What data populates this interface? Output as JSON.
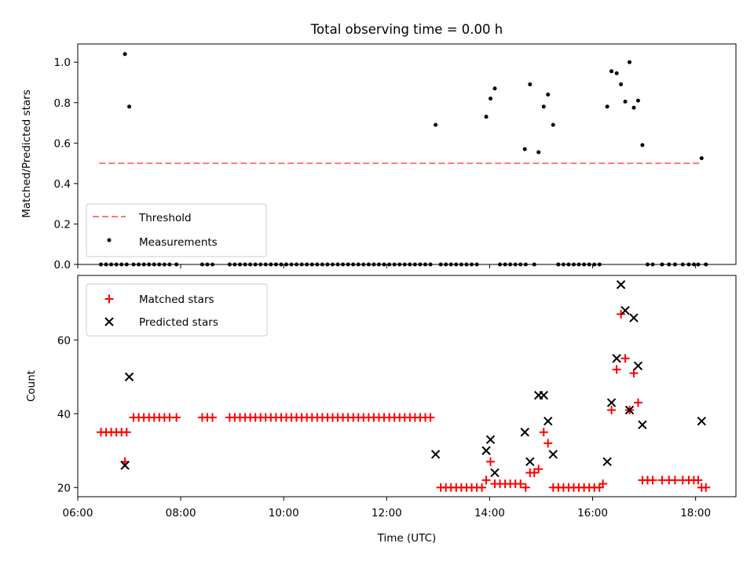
{
  "chart_data": [
    {
      "type": "scatter",
      "title": "Total observing time = 0.00 h",
      "xlabel": "",
      "ylabel": "Matched/Predicted stars",
      "xlim": [
        "06:00",
        "18:47"
      ],
      "ylim": [
        0,
        1.09
      ],
      "yticks": [
        "0.0",
        "0.2",
        "0.4",
        "0.6",
        "0.8",
        "1.0"
      ],
      "legend_position": "lower-left",
      "threshold": {
        "name": "Threshold",
        "value": 0.5,
        "x_start": "06:25",
        "x_end": "18:05",
        "color": "#ff7777"
      },
      "series": [
        {
          "name": "Measurements",
          "color": "#000000",
          "points": [
            [
              "06:27",
              0
            ],
            [
              "06:33",
              0
            ],
            [
              "06:39",
              0
            ],
            [
              "06:45",
              0
            ],
            [
              "06:51",
              0
            ],
            [
              "06:57",
              0
            ],
            [
              "06:55",
              1.04
            ],
            [
              "07:00",
              0.78
            ],
            [
              "07:05",
              0
            ],
            [
              "07:11",
              0
            ],
            [
              "07:17",
              0
            ],
            [
              "07:23",
              0
            ],
            [
              "07:29",
              0
            ],
            [
              "07:35",
              0
            ],
            [
              "07:41",
              0
            ],
            [
              "07:47",
              0
            ],
            [
              "07:55",
              0
            ],
            [
              "08:25",
              0
            ],
            [
              "08:31",
              0
            ],
            [
              "08:37",
              0
            ],
            [
              "08:57",
              0
            ],
            [
              "09:03",
              0
            ],
            [
              "09:09",
              0
            ],
            [
              "09:15",
              0
            ],
            [
              "09:21",
              0
            ],
            [
              "09:27",
              0
            ],
            [
              "09:33",
              0
            ],
            [
              "09:39",
              0
            ],
            [
              "09:45",
              0
            ],
            [
              "09:51",
              0
            ],
            [
              "09:57",
              0
            ],
            [
              "10:03",
              0
            ],
            [
              "10:09",
              0
            ],
            [
              "10:15",
              0
            ],
            [
              "10:21",
              0
            ],
            [
              "10:27",
              0
            ],
            [
              "10:33",
              0
            ],
            [
              "10:39",
              0
            ],
            [
              "10:45",
              0
            ],
            [
              "10:51",
              0
            ],
            [
              "10:57",
              0
            ],
            [
              "11:03",
              0
            ],
            [
              "11:09",
              0
            ],
            [
              "11:15",
              0
            ],
            [
              "11:21",
              0
            ],
            [
              "11:27",
              0
            ],
            [
              "11:33",
              0
            ],
            [
              "11:39",
              0
            ],
            [
              "11:45",
              0
            ],
            [
              "11:51",
              0
            ],
            [
              "11:57",
              0
            ],
            [
              "12:03",
              0
            ],
            [
              "12:09",
              0
            ],
            [
              "12:15",
              0
            ],
            [
              "12:21",
              0
            ],
            [
              "12:27",
              0
            ],
            [
              "12:33",
              0
            ],
            [
              "12:39",
              0
            ],
            [
              "12:45",
              0
            ],
            [
              "12:51",
              0
            ],
            [
              "12:57",
              0.69
            ],
            [
              "13:03",
              0
            ],
            [
              "13:09",
              0
            ],
            [
              "13:15",
              0
            ],
            [
              "13:21",
              0
            ],
            [
              "13:27",
              0
            ],
            [
              "13:33",
              0
            ],
            [
              "13:39",
              0
            ],
            [
              "13:45",
              0
            ],
            [
              "13:56",
              0.73
            ],
            [
              "14:01",
              0.82
            ],
            [
              "14:06",
              0.87
            ],
            [
              "14:12",
              0
            ],
            [
              "14:18",
              0
            ],
            [
              "14:24",
              0
            ],
            [
              "14:30",
              0
            ],
            [
              "14:36",
              0
            ],
            [
              "14:42",
              0
            ],
            [
              "14:41",
              0.57
            ],
            [
              "14:47",
              0.89
            ],
            [
              "14:52",
              0
            ],
            [
              "14:57",
              0.555
            ],
            [
              "15:03",
              0.78
            ],
            [
              "15:08",
              0.84
            ],
            [
              "15:14",
              0.69
            ],
            [
              "15:20",
              0
            ],
            [
              "15:26",
              0
            ],
            [
              "15:32",
              0
            ],
            [
              "15:38",
              0
            ],
            [
              "15:44",
              0
            ],
            [
              "15:50",
              0
            ],
            [
              "15:56",
              0
            ],
            [
              "16:02",
              0
            ],
            [
              "16:08",
              0
            ],
            [
              "16:17",
              0.78
            ],
            [
              "16:22",
              0.955
            ],
            [
              "16:28",
              0.945
            ],
            [
              "16:33",
              0.89
            ],
            [
              "16:38",
              0.805
            ],
            [
              "16:43",
              1.0
            ],
            [
              "16:48",
              0.775
            ],
            [
              "16:53",
              0.81
            ],
            [
              "16:58",
              0.59
            ],
            [
              "17:04",
              0
            ],
            [
              "17:10",
              0
            ],
            [
              "17:21",
              0
            ],
            [
              "17:29",
              0
            ],
            [
              "17:36",
              0
            ],
            [
              "17:45",
              0
            ],
            [
              "17:52",
              0
            ],
            [
              "17:58",
              0
            ],
            [
              "18:03",
              0
            ],
            [
              "18:07",
              0.525
            ],
            [
              "18:12",
              0
            ]
          ]
        }
      ]
    },
    {
      "type": "scatter",
      "title": "",
      "xlabel": "Time (UTC)",
      "ylabel": "Count",
      "xlim": [
        "06:00",
        "18:47"
      ],
      "ylim": [
        17.5,
        77.5
      ],
      "yticks": [
        "20",
        "40",
        "60"
      ],
      "xticks": [
        "06:00",
        "08:00",
        "10:00",
        "12:00",
        "14:00",
        "16:00",
        "18:00"
      ],
      "legend_position": "upper-left",
      "series": [
        {
          "name": "Matched stars",
          "marker": "plus",
          "color": "#ff0000",
          "points": [
            [
              "06:27",
              35
            ],
            [
              "06:33",
              35
            ],
            [
              "06:39",
              35
            ],
            [
              "06:45",
              35
            ],
            [
              "06:51",
              35
            ],
            [
              "06:57",
              35
            ],
            [
              "06:55",
              27
            ],
            [
              "07:05",
              39
            ],
            [
              "07:11",
              39
            ],
            [
              "07:17",
              39
            ],
            [
              "07:23",
              39
            ],
            [
              "07:29",
              39
            ],
            [
              "07:35",
              39
            ],
            [
              "07:41",
              39
            ],
            [
              "07:47",
              39
            ],
            [
              "07:55",
              39
            ],
            [
              "08:25",
              39
            ],
            [
              "08:31",
              39
            ],
            [
              "08:37",
              39
            ],
            [
              "08:57",
              39
            ],
            [
              "09:03",
              39
            ],
            [
              "09:09",
              39
            ],
            [
              "09:15",
              39
            ],
            [
              "09:21",
              39
            ],
            [
              "09:27",
              39
            ],
            [
              "09:33",
              39
            ],
            [
              "09:39",
              39
            ],
            [
              "09:45",
              39
            ],
            [
              "09:51",
              39
            ],
            [
              "09:57",
              39
            ],
            [
              "10:03",
              39
            ],
            [
              "10:09",
              39
            ],
            [
              "10:15",
              39
            ],
            [
              "10:21",
              39
            ],
            [
              "10:27",
              39
            ],
            [
              "10:33",
              39
            ],
            [
              "10:39",
              39
            ],
            [
              "10:45",
              39
            ],
            [
              "10:51",
              39
            ],
            [
              "10:57",
              39
            ],
            [
              "11:03",
              39
            ],
            [
              "11:09",
              39
            ],
            [
              "11:15",
              39
            ],
            [
              "11:21",
              39
            ],
            [
              "11:27",
              39
            ],
            [
              "11:33",
              39
            ],
            [
              "11:39",
              39
            ],
            [
              "11:45",
              39
            ],
            [
              "11:51",
              39
            ],
            [
              "11:57",
              39
            ],
            [
              "12:03",
              39
            ],
            [
              "12:09",
              39
            ],
            [
              "12:15",
              39
            ],
            [
              "12:21",
              39
            ],
            [
              "12:27",
              39
            ],
            [
              "12:33",
              39
            ],
            [
              "12:39",
              39
            ],
            [
              "12:45",
              39
            ],
            [
              "12:51",
              39
            ],
            [
              "13:03",
              20
            ],
            [
              "13:09",
              20
            ],
            [
              "13:15",
              20
            ],
            [
              "13:21",
              20
            ],
            [
              "13:27",
              20
            ],
            [
              "13:33",
              20
            ],
            [
              "13:39",
              20
            ],
            [
              "13:45",
              20
            ],
            [
              "13:51",
              20
            ],
            [
              "13:56",
              22
            ],
            [
              "14:01",
              27
            ],
            [
              "14:06",
              21
            ],
            [
              "14:12",
              21
            ],
            [
              "14:18",
              21
            ],
            [
              "14:24",
              21
            ],
            [
              "14:30",
              21
            ],
            [
              "14:36",
              21
            ],
            [
              "14:42",
              20
            ],
            [
              "14:47",
              24
            ],
            [
              "14:52",
              24
            ],
            [
              "14:57",
              25
            ],
            [
              "15:03",
              35
            ],
            [
              "15:08",
              32
            ],
            [
              "15:14",
              20
            ],
            [
              "15:20",
              20
            ],
            [
              "15:26",
              20
            ],
            [
              "15:32",
              20
            ],
            [
              "15:38",
              20
            ],
            [
              "15:44",
              20
            ],
            [
              "15:50",
              20
            ],
            [
              "15:56",
              20
            ],
            [
              "16:02",
              20
            ],
            [
              "16:08",
              20
            ],
            [
              "16:12",
              21
            ],
            [
              "16:22",
              41
            ],
            [
              "16:28",
              52
            ],
            [
              "16:33",
              67
            ],
            [
              "16:38",
              55
            ],
            [
              "16:43",
              41
            ],
            [
              "16:48",
              51
            ],
            [
              "16:53",
              43
            ],
            [
              "16:58",
              22
            ],
            [
              "17:04",
              22
            ],
            [
              "17:10",
              22
            ],
            [
              "17:21",
              22
            ],
            [
              "17:29",
              22
            ],
            [
              "17:36",
              22
            ],
            [
              "17:45",
              22
            ],
            [
              "17:52",
              22
            ],
            [
              "17:58",
              22
            ],
            [
              "18:03",
              22
            ],
            [
              "18:07",
              20
            ],
            [
              "18:12",
              20
            ]
          ]
        },
        {
          "name": "Predicted stars",
          "marker": "x",
          "color": "#000000",
          "points": [
            [
              "06:55",
              26
            ],
            [
              "07:00",
              50
            ],
            [
              "12:57",
              29
            ],
            [
              "13:56",
              30
            ],
            [
              "14:01",
              33
            ],
            [
              "14:06",
              24
            ],
            [
              "14:41",
              35
            ],
            [
              "14:47",
              27
            ],
            [
              "14:57",
              45
            ],
            [
              "15:03",
              45
            ],
            [
              "15:08",
              38
            ],
            [
              "15:14",
              29
            ],
            [
              "16:17",
              27
            ],
            [
              "16:22",
              43
            ],
            [
              "16:28",
              55
            ],
            [
              "16:33",
              75
            ],
            [
              "16:38",
              68
            ],
            [
              "16:43",
              41
            ],
            [
              "16:48",
              66
            ],
            [
              "16:53",
              53
            ],
            [
              "16:58",
              37
            ],
            [
              "18:07",
              38
            ]
          ]
        }
      ]
    }
  ]
}
